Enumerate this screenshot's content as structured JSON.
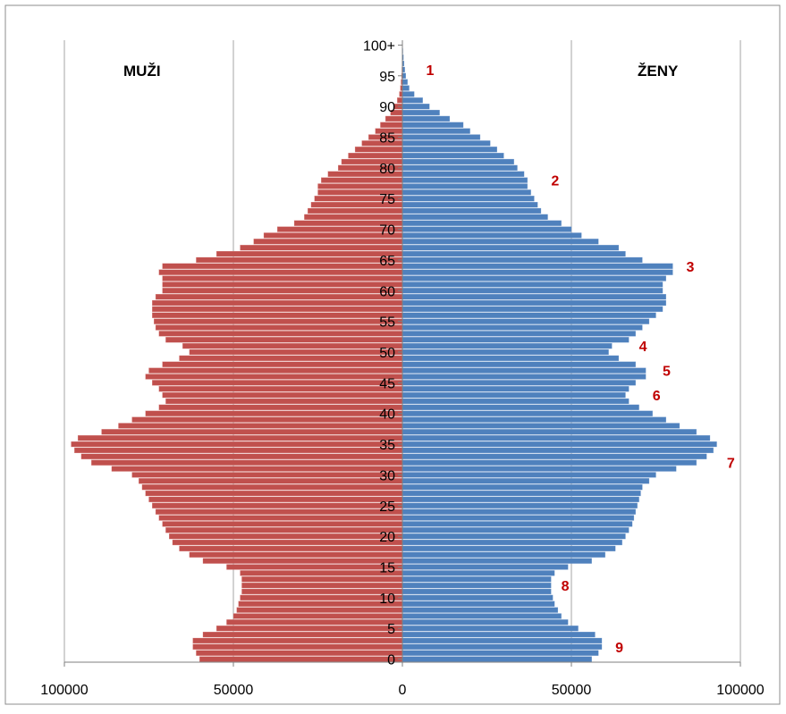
{
  "chart_data": {
    "type": "bar",
    "subtype": "population-pyramid",
    "orientation": "horizontal",
    "left_title": "MUŽI",
    "right_title": "ŽENY",
    "categories": [
      "0",
      "1",
      "2",
      "3",
      "4",
      "5",
      "6",
      "7",
      "8",
      "9",
      "10",
      "11",
      "12",
      "13",
      "14",
      "15",
      "16",
      "17",
      "18",
      "19",
      "20",
      "21",
      "22",
      "23",
      "24",
      "25",
      "26",
      "27",
      "28",
      "29",
      "30",
      "31",
      "32",
      "33",
      "34",
      "35",
      "36",
      "37",
      "38",
      "39",
      "40",
      "41",
      "42",
      "43",
      "44",
      "45",
      "46",
      "47",
      "48",
      "49",
      "50",
      "51",
      "52",
      "53",
      "54",
      "55",
      "56",
      "57",
      "58",
      "59",
      "60",
      "61",
      "62",
      "63",
      "64",
      "65",
      "66",
      "67",
      "68",
      "69",
      "70",
      "71",
      "72",
      "73",
      "74",
      "75",
      "76",
      "77",
      "78",
      "79",
      "80",
      "81",
      "82",
      "83",
      "84",
      "85",
      "86",
      "87",
      "88",
      "89",
      "90",
      "91",
      "92",
      "93",
      "94",
      "95",
      "96",
      "97",
      "98",
      "99",
      "100+"
    ],
    "age_tick_labels": [
      "100+",
      "95",
      "90",
      "85",
      "80",
      "75",
      "70",
      "65",
      "60",
      "55",
      "50",
      "45",
      "40",
      "35",
      "30",
      "25",
      "20",
      "15",
      "10",
      "5",
      "0"
    ],
    "x_tick_labels": [
      "100000",
      "50000",
      "0",
      "50000",
      "100000"
    ],
    "xlim": [
      -100000,
      100000
    ],
    "grid": true,
    "series": [
      {
        "name": "MUŽI",
        "color": "#c0504d",
        "values": [
          60000,
          61000,
          62000,
          62000,
          59000,
          55000,
          52000,
          50000,
          49000,
          48500,
          48000,
          47500,
          47500,
          47500,
          48000,
          52000,
          59000,
          63000,
          66000,
          68000,
          69000,
          70000,
          71000,
          72000,
          73000,
          74000,
          75000,
          76000,
          77000,
          78000,
          80000,
          86000,
          92000,
          95000,
          97000,
          98000,
          96000,
          89000,
          84000,
          80000,
          76000,
          72000,
          70000,
          71000,
          72000,
          74000,
          76000,
          75000,
          71000,
          66000,
          63000,
          65000,
          70000,
          72000,
          73000,
          73500,
          74000,
          74000,
          74000,
          73000,
          71000,
          71000,
          71000,
          72000,
          71000,
          61000,
          55000,
          48000,
          44000,
          41000,
          37000,
          32000,
          29000,
          28000,
          27000,
          26000,
          25000,
          25000,
          24000,
          22000,
          19000,
          18000,
          16000,
          14000,
          12000,
          10000,
          8000,
          6500,
          5000,
          3500,
          2500,
          1500,
          900,
          600,
          400,
          250,
          150,
          100,
          60,
          30,
          20
        ],
        "bar_color": "#c0504d"
      },
      {
        "name": "ŽENY",
        "color": "#4f81bd",
        "values": [
          56000,
          58000,
          59000,
          59000,
          57000,
          52000,
          49000,
          47000,
          46000,
          45000,
          44500,
          44000,
          44000,
          44000,
          45000,
          49000,
          56000,
          60000,
          63000,
          65000,
          66000,
          67000,
          68000,
          68500,
          69000,
          69500,
          70000,
          70500,
          71000,
          73000,
          75000,
          81000,
          87000,
          90000,
          92000,
          93000,
          91000,
          87000,
          82000,
          78000,
          74000,
          70000,
          67000,
          66000,
          67000,
          69000,
          72000,
          72000,
          69000,
          64000,
          61000,
          62000,
          67000,
          69000,
          71000,
          73000,
          75000,
          77000,
          78000,
          78000,
          77000,
          77000,
          78000,
          80000,
          80000,
          71000,
          66000,
          64000,
          58000,
          53000,
          50000,
          47000,
          43000,
          41000,
          40000,
          39000,
          38000,
          37000,
          37000,
          36000,
          34000,
          33000,
          30000,
          28000,
          26000,
          23000,
          20000,
          18000,
          14000,
          11000,
          8000,
          6000,
          3500,
          2000,
          1500,
          1000,
          700,
          500,
          300,
          150,
          80
        ],
        "bar_color": "#4f81bd"
      }
    ],
    "annotations": [
      {
        "label": "1",
        "age": 96,
        "side": "right",
        "x_value": 7000
      },
      {
        "label": "2",
        "age": 78,
        "side": "right",
        "x_value": 44000
      },
      {
        "label": "3",
        "age": 64,
        "side": "right",
        "x_value": 84000
      },
      {
        "label": "4",
        "age": 51,
        "side": "right",
        "x_value": 70000
      },
      {
        "label": "5",
        "age": 47,
        "side": "right",
        "x_value": 77000
      },
      {
        "label": "6",
        "age": 43,
        "side": "right",
        "x_value": 74000
      },
      {
        "label": "7",
        "age": 32,
        "side": "right",
        "x_value": 96000
      },
      {
        "label": "8",
        "age": 12,
        "side": "right",
        "x_value": 47000
      },
      {
        "label": "9",
        "age": 2,
        "side": "right",
        "x_value": 63000
      }
    ]
  }
}
